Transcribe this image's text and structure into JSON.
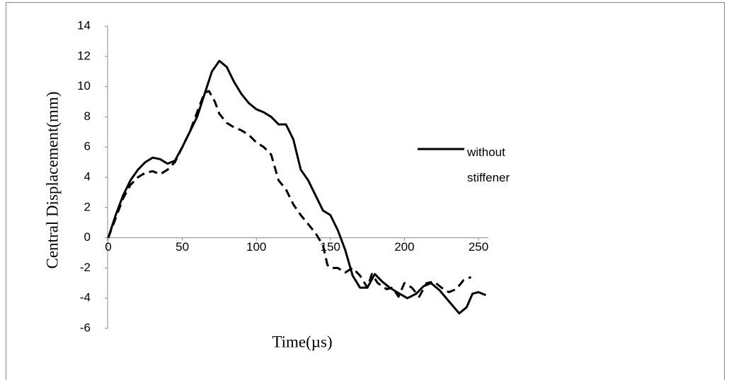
{
  "chart_data": {
    "type": "line",
    "x_label": "Time(µs)",
    "y_label": "Central Displacement(mm)",
    "xlim": [
      0,
      250
    ],
    "xticks": [
      0,
      50,
      100,
      150,
      200,
      250
    ],
    "ylim": [
      -6,
      14
    ],
    "yticks": [
      -6,
      -4,
      -2,
      0,
      2,
      4,
      6,
      8,
      10,
      12,
      14
    ],
    "legend": "right",
    "series": [
      {
        "name": "without stiffener",
        "color": "#000000",
        "dash": false,
        "x": [
          0,
          5,
          10,
          15,
          20,
          25,
          30,
          35,
          40,
          45,
          50,
          55,
          60,
          65,
          70,
          75,
          80,
          85,
          90,
          95,
          100,
          105,
          110,
          115,
          120,
          125,
          130,
          135,
          140,
          145,
          150,
          155,
          160,
          165,
          170,
          175,
          180,
          185,
          190,
          195,
          202,
          208,
          213,
          218,
          224,
          230,
          237,
          242,
          246,
          250,
          255
        ],
        "values": [
          0,
          1.5,
          2.8,
          3.8,
          4.5,
          5.0,
          5.3,
          5.2,
          4.9,
          5.1,
          6.0,
          7.0,
          8.0,
          9.5,
          11.0,
          11.7,
          11.3,
          10.3,
          9.5,
          8.9,
          8.5,
          8.3,
          8.0,
          7.5,
          7.5,
          6.5,
          4.5,
          3.8,
          2.8,
          1.8,
          1.5,
          0.5,
          -0.8,
          -2.5,
          -3.3,
          -3.3,
          -2.4,
          -2.9,
          -3.3,
          -3.6,
          -4.0,
          -3.7,
          -3.2,
          -3.0,
          -3.5,
          -4.2,
          -5.0,
          -4.6,
          -3.7,
          -3.6,
          -3.8
        ]
      },
      {
        "color": "#000000",
        "dash": true,
        "x": [
          0,
          5,
          10,
          15,
          20,
          25,
          30,
          35,
          40,
          45,
          50,
          55,
          60,
          65,
          68,
          72,
          75,
          80,
          85,
          90,
          95,
          100,
          105,
          110,
          115,
          120,
          125,
          130,
          135,
          140,
          145,
          148,
          150,
          155,
          160,
          165,
          170,
          175,
          178,
          182,
          188,
          192,
          196,
          200,
          205,
          210,
          215,
          220,
          225,
          230,
          235,
          240,
          245
        ],
        "values": [
          0,
          1.3,
          2.6,
          3.5,
          4.0,
          4.3,
          4.4,
          4.2,
          4.5,
          5.0,
          6.0,
          7.0,
          8.3,
          9.6,
          9.7,
          9.0,
          8.2,
          7.6,
          7.3,
          7.1,
          6.8,
          6.3,
          6.0,
          5.5,
          3.8,
          3.2,
          2.2,
          1.5,
          0.9,
          0.3,
          -0.5,
          -1.8,
          -2.0,
          -2.0,
          -2.3,
          -2.0,
          -2.5,
          -3.3,
          -2.4,
          -3.0,
          -3.4,
          -3.3,
          -3.9,
          -3.0,
          -3.3,
          -3.9,
          -3.0,
          -2.9,
          -3.3,
          -3.6,
          -3.4,
          -2.8,
          -2.6
        ]
      }
    ]
  }
}
